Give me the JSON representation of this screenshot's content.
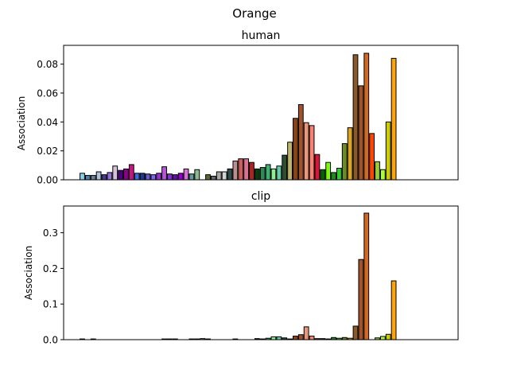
{
  "figure": {
    "suptitle": "Orange"
  },
  "chart_data": [
    {
      "type": "bar",
      "title": "human",
      "ylabel": "Association",
      "xlabel": "",
      "ylim": [
        0,
        0.093
      ],
      "yticks": [
        "0.00",
        "0.02",
        "0.04",
        "0.06",
        "0.08"
      ],
      "ytick_values": [
        0,
        0.02,
        0.04,
        0.06,
        0.08
      ],
      "grid": false,
      "values": [
        0.0045,
        0.003,
        0.003,
        0.0055,
        0.0035,
        0.005,
        0.0095,
        0.0065,
        0.0075,
        0.0105,
        0.0045,
        0.0045,
        0.004,
        0.0035,
        0.0045,
        0.009,
        0.004,
        0.0035,
        0.0045,
        0.0075,
        0.004,
        0.007,
        0,
        0.0035,
        0.0025,
        0.0055,
        0.0055,
        0.0075,
        0.013,
        0.0145,
        0.0145,
        0.012,
        0.0075,
        0.0085,
        0.0105,
        0.0075,
        0.0095,
        0.017,
        0.026,
        0.0425,
        0.052,
        0.0395,
        0.0375,
        0.0175,
        0.007,
        0.012,
        0.005,
        0.008,
        0.025,
        0.036,
        0.0865,
        0.065,
        0.0875,
        0.032,
        0.0125,
        0.007,
        0.04,
        0.084
      ],
      "colors": [
        "#87CEEB",
        "#4682B4",
        "#708090",
        "#B0C4DE",
        "#483D8B",
        "#9370DB",
        "#D8BFD8",
        "#4B0082",
        "#8B008B",
        "#C71585",
        "#4169E1",
        "#1E3A8A",
        "#6A5ACD",
        "#7B68EE",
        "#9932CC",
        "#BA55D3",
        "#8A2BE2",
        "#6A0DAD",
        "#9400D3",
        "#DA70D6",
        "#5F9EA0",
        "#8FBC8F",
        "#808080",
        "#556B2F",
        "#696969",
        "#A9A9A9",
        "#D3D3D3",
        "#2F4F4F",
        "#BC8F8F",
        "#CD5C5C",
        "#DB7093",
        "#B22222",
        "#0B3D0B",
        "#2E8B57",
        "#3CB371",
        "#90EE90",
        "#66CDAA",
        "#2F4F2F",
        "#BDB76B",
        "#8B4513",
        "#A0522D",
        "#E9967A",
        "#FA8072",
        "#DC143C",
        "#006400",
        "#7CFC00",
        "#228B22",
        "#32CD32",
        "#6B8E23",
        "#DAA520",
        "#8B5A2B",
        "#A0522D",
        "#D2691E",
        "#FF4500",
        "#9ACD32",
        "#ADFF2F",
        "#CCCC00",
        "#FFA500"
      ]
    },
    {
      "type": "bar",
      "title": "clip",
      "ylabel": "Association",
      "xlabel": "",
      "ylim": [
        0,
        0.375
      ],
      "yticks": [
        "0.0",
        "0.1",
        "0.2",
        "0.3"
      ],
      "ytick_values": [
        0,
        0.1,
        0.2,
        0.3
      ],
      "grid": false,
      "values": [
        0.002,
        0,
        0.002,
        0,
        0,
        0,
        0,
        0,
        0,
        0,
        0,
        0,
        0,
        0,
        0,
        0.002,
        0.002,
        0.002,
        0,
        0,
        0.002,
        0.002,
        0.003,
        0.002,
        0,
        0,
        0,
        0,
        0.002,
        0,
        0,
        0,
        0.003,
        0.002,
        0.004,
        0.008,
        0.008,
        0.005,
        0.002,
        0.01,
        0.014,
        0.036,
        0.01,
        0.003,
        0.003,
        0.002,
        0.006,
        0.004,
        0.006,
        0.004,
        0.038,
        0.225,
        0.355,
        0,
        0.005,
        0.009,
        0.015,
        0.165
      ],
      "colors": [
        "#87CEEB",
        "#4682B4",
        "#708090",
        "#B0C4DE",
        "#483D8B",
        "#9370DB",
        "#D8BFD8",
        "#4B0082",
        "#8B008B",
        "#C71585",
        "#4169E1",
        "#1E3A8A",
        "#6A5ACD",
        "#7B68EE",
        "#9932CC",
        "#BA55D3",
        "#8A2BE2",
        "#6A0DAD",
        "#9400D3",
        "#DA70D6",
        "#5F9EA0",
        "#8FBC8F",
        "#808080",
        "#556B2F",
        "#696969",
        "#A9A9A9",
        "#D3D3D3",
        "#2F4F4F",
        "#BC8F8F",
        "#CD5C5C",
        "#DB7093",
        "#B22222",
        "#0B3D0B",
        "#2E8B57",
        "#3CB371",
        "#90EE90",
        "#66CDAA",
        "#2F4F2F",
        "#BDB76B",
        "#8B4513",
        "#A0522D",
        "#E9967A",
        "#FA8072",
        "#DC143C",
        "#006400",
        "#7CFC00",
        "#228B22",
        "#32CD32",
        "#6B8E23",
        "#DAA520",
        "#8B5A2B",
        "#A0522D",
        "#D2691E",
        "#FF4500",
        "#9ACD32",
        "#ADFF2F",
        "#CCCC00",
        "#FFA500"
      ]
    }
  ]
}
